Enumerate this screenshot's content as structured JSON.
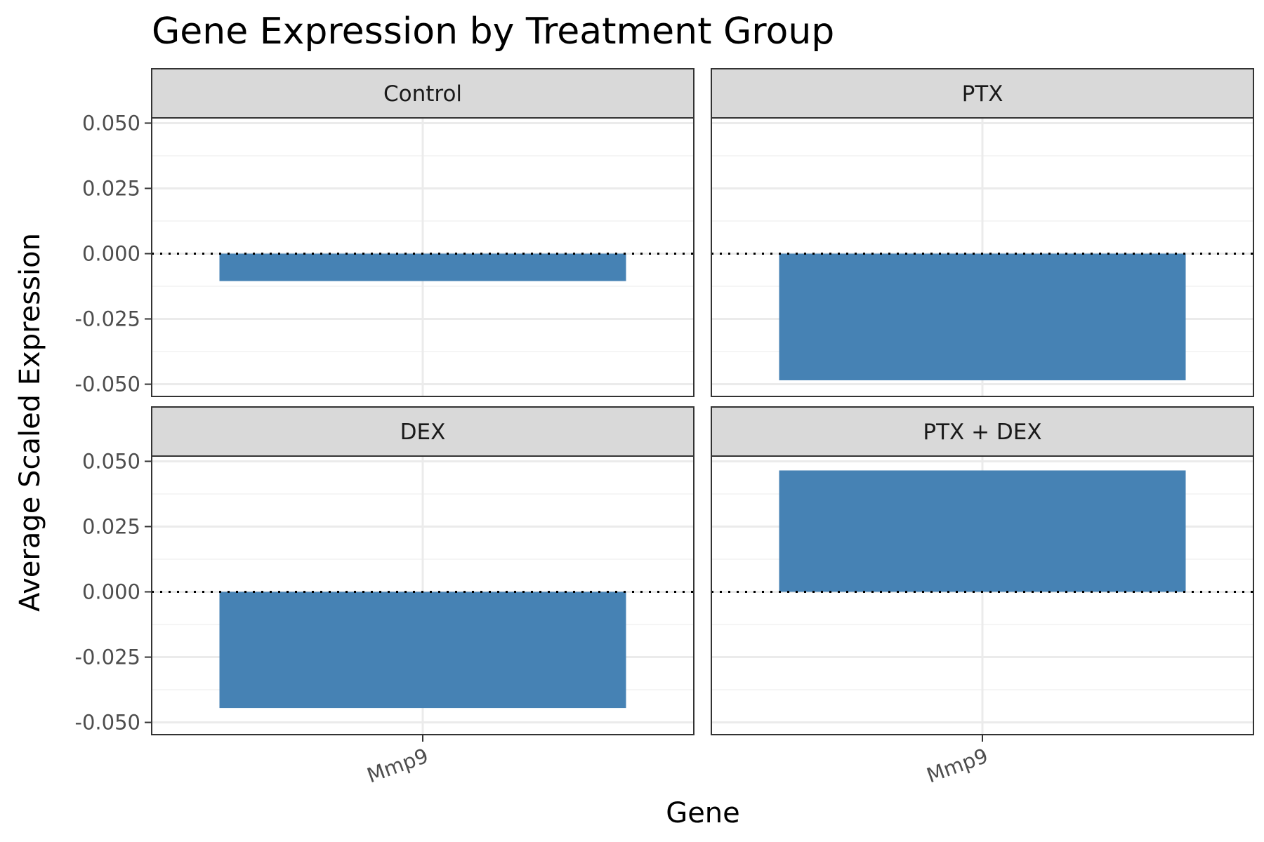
{
  "chart_data": {
    "type": "bar",
    "title": "Gene Expression by Treatment Group",
    "xlabel": "Gene",
    "ylabel": "Average Scaled Expression",
    "categories": [
      "Mmp9"
    ],
    "ylim": [
      -0.052,
      0.052
    ],
    "yticks": [
      0.05,
      0.025,
      0,
      -0.025,
      -0.05
    ],
    "ytick_labels": [
      "0.050",
      "0.025",
      "0.000",
      "-0.025",
      "-0.050"
    ],
    "layout": "facet grid 2x2",
    "grid": true,
    "reference_line": 0,
    "colors": {
      "bar": "#4682b4",
      "strip": "#d9d9d9",
      "grid": "#ebebeb",
      "border": "#333333"
    },
    "panels": [
      {
        "label": "Control",
        "values": [
          -0.0105
        ]
      },
      {
        "label": "PTX",
        "values": [
          -0.0485
        ]
      },
      {
        "label": "DEX",
        "values": [
          -0.0445
        ]
      },
      {
        "label": "PTX + DEX",
        "values": [
          0.0465
        ]
      }
    ]
  }
}
